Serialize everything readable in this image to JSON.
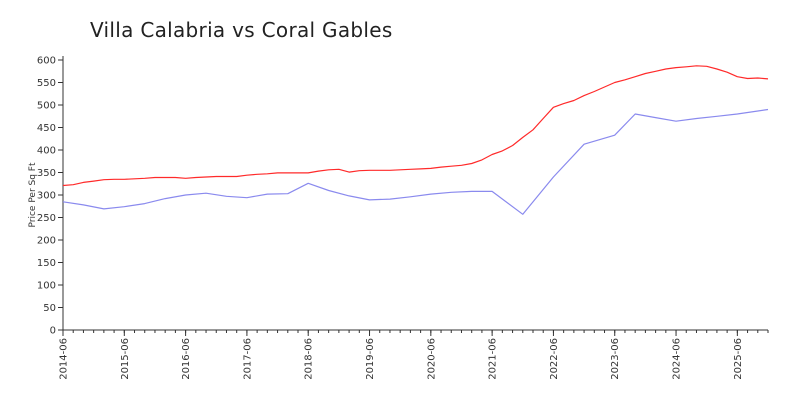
{
  "chart_data": {
    "type": "line",
    "title": "Villa Calabria vs Coral Gables",
    "ylabel": "Price Per Sq Ft",
    "xlabel": "",
    "ylim": [
      0,
      600
    ],
    "yticks": [
      0,
      50,
      100,
      150,
      200,
      250,
      300,
      350,
      400,
      450,
      500,
      550,
      600
    ],
    "xlim": [
      "2014-06",
      "2025-12"
    ],
    "xticks": [
      "2014-06",
      "2015-06",
      "2016-06",
      "2017-06",
      "2018-06",
      "2019-06",
      "2020-06",
      "2021-06",
      "2022-06",
      "2023-06",
      "2024-06",
      "2025-06"
    ],
    "grid": false,
    "series": [
      {
        "color": "#ff2a2a",
        "points": [
          [
            "2014-06",
            321
          ],
          [
            "2014-08",
            323
          ],
          [
            "2014-10",
            328
          ],
          [
            "2014-12",
            331
          ],
          [
            "2015-02",
            334
          ],
          [
            "2015-04",
            335
          ],
          [
            "2015-06",
            335
          ],
          [
            "2015-08",
            336
          ],
          [
            "2015-10",
            337
          ],
          [
            "2015-12",
            339
          ],
          [
            "2016-02",
            339
          ],
          [
            "2016-04",
            339
          ],
          [
            "2016-06",
            337
          ],
          [
            "2016-08",
            339
          ],
          [
            "2016-10",
            340
          ],
          [
            "2016-12",
            341
          ],
          [
            "2017-02",
            341
          ],
          [
            "2017-04",
            341
          ],
          [
            "2017-06",
            344
          ],
          [
            "2017-08",
            346
          ],
          [
            "2017-10",
            347
          ],
          [
            "2017-12",
            349
          ],
          [
            "2018-02",
            349
          ],
          [
            "2018-04",
            349
          ],
          [
            "2018-06",
            349
          ],
          [
            "2018-08",
            353
          ],
          [
            "2018-10",
            356
          ],
          [
            "2018-12",
            357
          ],
          [
            "2019-02",
            351
          ],
          [
            "2019-04",
            354
          ],
          [
            "2019-06",
            355
          ],
          [
            "2019-08",
            355
          ],
          [
            "2019-10",
            355
          ],
          [
            "2019-12",
            356
          ],
          [
            "2020-02",
            357
          ],
          [
            "2020-04",
            358
          ],
          [
            "2020-06",
            359
          ],
          [
            "2020-08",
            362
          ],
          [
            "2020-10",
            364
          ],
          [
            "2020-12",
            366
          ],
          [
            "2021-02",
            370
          ],
          [
            "2021-04",
            378
          ],
          [
            "2021-06",
            390
          ],
          [
            "2021-08",
            398
          ],
          [
            "2021-10",
            410
          ],
          [
            "2021-12",
            428
          ],
          [
            "2022-02",
            445
          ],
          [
            "2022-04",
            470
          ],
          [
            "2022-06",
            495
          ],
          [
            "2022-08",
            503
          ],
          [
            "2022-10",
            510
          ],
          [
            "2022-12",
            521
          ],
          [
            "2023-02",
            530
          ],
          [
            "2023-04",
            540
          ],
          [
            "2023-06",
            550
          ],
          [
            "2023-08",
            556
          ],
          [
            "2023-10",
            563
          ],
          [
            "2023-12",
            570
          ],
          [
            "2024-02",
            575
          ],
          [
            "2024-04",
            580
          ],
          [
            "2024-06",
            583
          ],
          [
            "2024-08",
            585
          ],
          [
            "2024-10",
            587
          ],
          [
            "2024-12",
            586
          ],
          [
            "2025-02",
            580
          ],
          [
            "2025-04",
            573
          ],
          [
            "2025-06",
            563
          ],
          [
            "2025-08",
            559
          ],
          [
            "2025-10",
            560
          ],
          [
            "2025-12",
            558
          ]
        ]
      },
      {
        "color": "#8a8aee",
        "points": [
          [
            "2014-06",
            285
          ],
          [
            "2014-10",
            278
          ],
          [
            "2015-02",
            269
          ],
          [
            "2015-06",
            274
          ],
          [
            "2015-10",
            281
          ],
          [
            "2016-02",
            292
          ],
          [
            "2016-06",
            300
          ],
          [
            "2016-10",
            304
          ],
          [
            "2017-02",
            297
          ],
          [
            "2017-06",
            294
          ],
          [
            "2017-10",
            302
          ],
          [
            "2018-02",
            303
          ],
          [
            "2018-06",
            326
          ],
          [
            "2018-10",
            310
          ],
          [
            "2019-02",
            298
          ],
          [
            "2019-06",
            289
          ],
          [
            "2019-10",
            291
          ],
          [
            "2020-02",
            296
          ],
          [
            "2020-06",
            302
          ],
          [
            "2020-10",
            306
          ],
          [
            "2021-02",
            308
          ],
          [
            "2021-06",
            308
          ],
          [
            "2021-12",
            257
          ],
          [
            "2022-06",
            340
          ],
          [
            "2022-12",
            413
          ],
          [
            "2023-06",
            433
          ],
          [
            "2023-10",
            480
          ],
          [
            "2024-02",
            472
          ],
          [
            "2024-06",
            464
          ],
          [
            "2024-10",
            470
          ],
          [
            "2025-02",
            475
          ],
          [
            "2025-06",
            480
          ],
          [
            "2025-12",
            490
          ]
        ]
      }
    ]
  }
}
